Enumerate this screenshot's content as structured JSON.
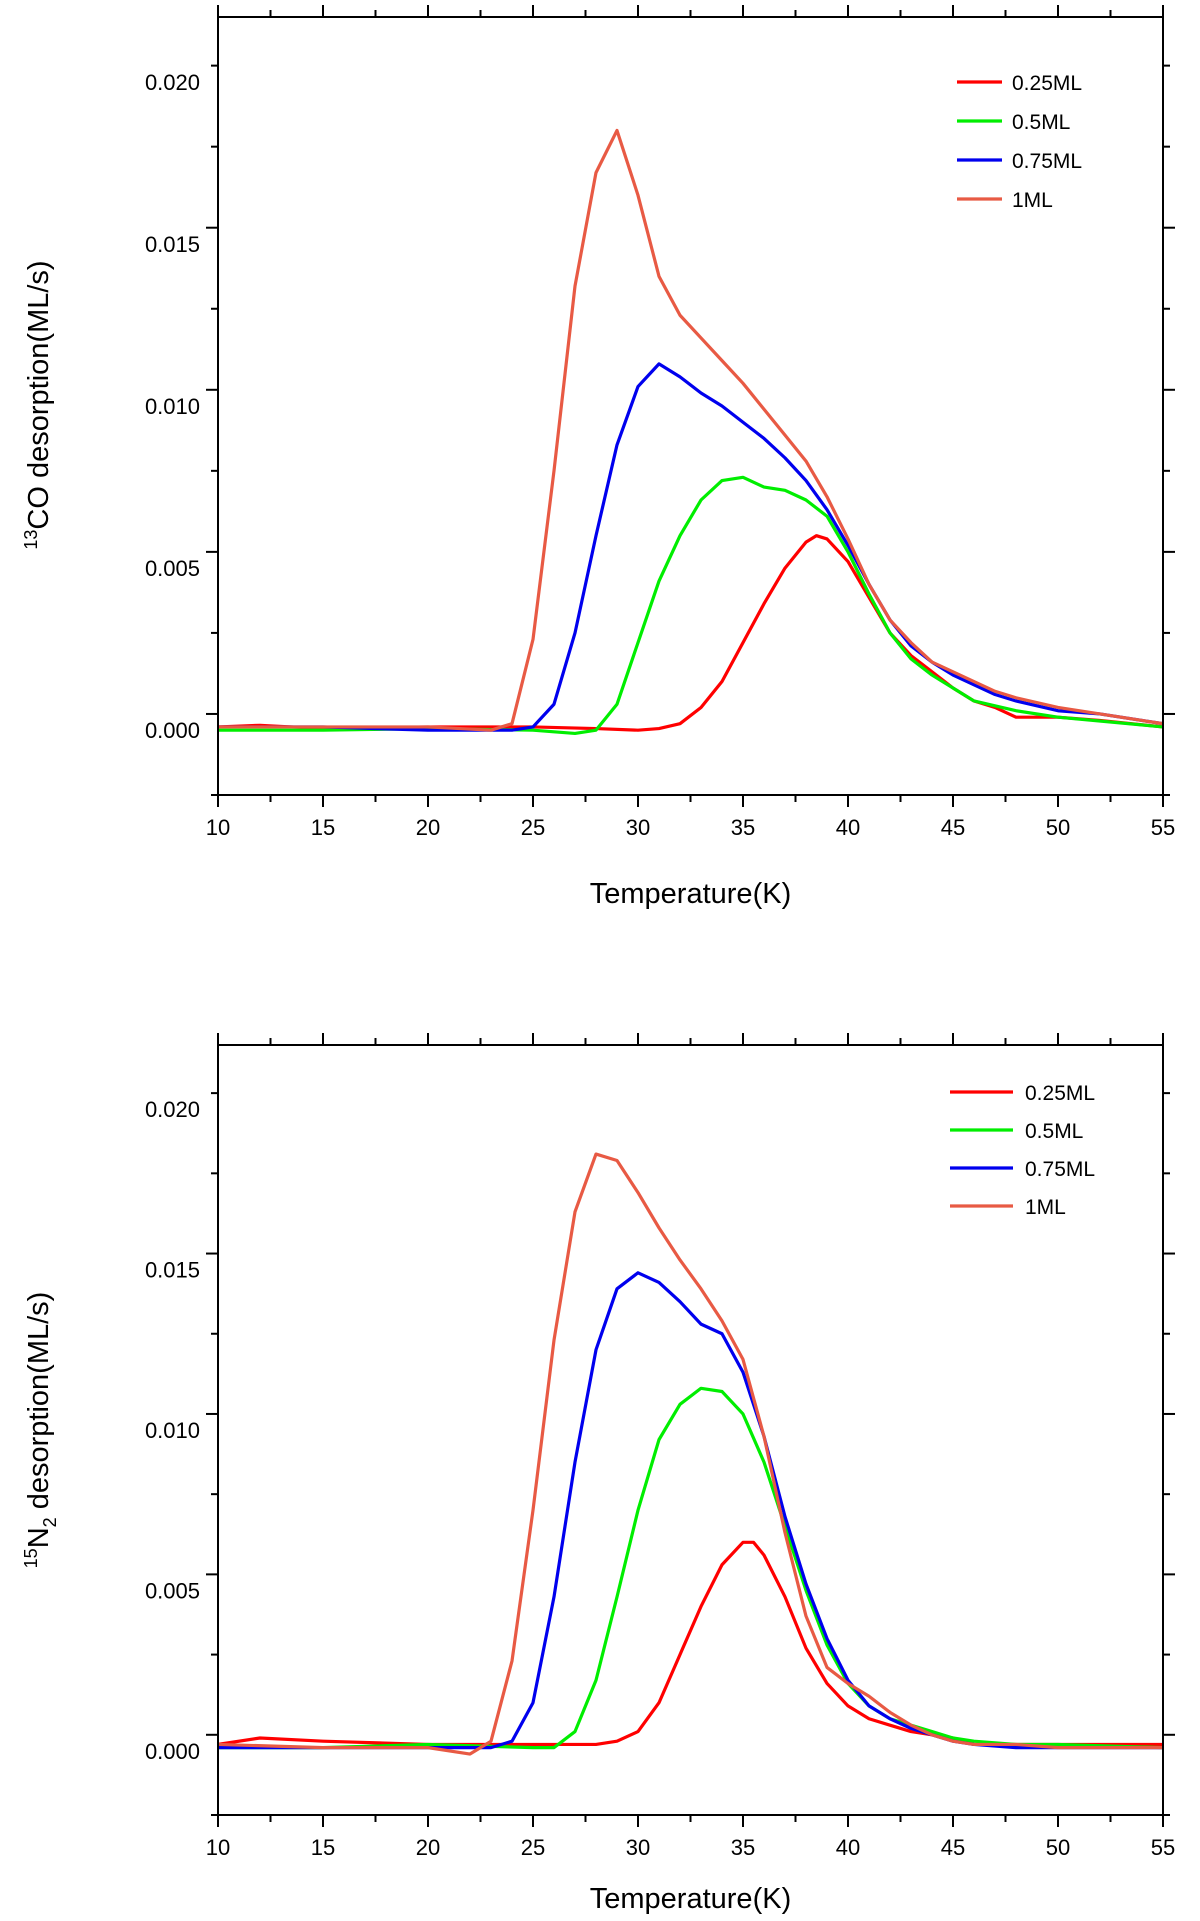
{
  "chart_data": [
    {
      "type": "line",
      "xlabel": "Temperature(K)",
      "ylabel": {
        "sup": "13",
        "main": "CO desorption(ML/s)"
      },
      "xlim": [
        10,
        55
      ],
      "ylim": [
        -0.002,
        0.022
      ],
      "x_ticks": [
        10,
        15,
        20,
        25,
        30,
        35,
        40,
        45,
        50,
        55
      ],
      "y_ticks": [
        0.0,
        0.005,
        0.01,
        0.015,
        0.02
      ],
      "x_tick_labels": [
        "10",
        "15",
        "20",
        "25",
        "30",
        "35",
        "40",
        "45",
        "50",
        "55"
      ],
      "y_tick_labels": [
        "0.000",
        "0.005",
        "0.010",
        "0.015",
        "0.020"
      ],
      "legend_position": "top-right",
      "series": [
        {
          "name": "0.25ML",
          "color": "#ff0000",
          "x": [
            10,
            12,
            15,
            20,
            25,
            28,
            30,
            31,
            32,
            33,
            34,
            35,
            36,
            37,
            38,
            38.5,
            39,
            40,
            41,
            42,
            43,
            44,
            45,
            46,
            47,
            48,
            50,
            52,
            55
          ],
          "y": [
            0.0001,
            0.00015,
            5e-05,
            0.0001,
            0.0001,
            5e-05,
            0.0,
            5e-05,
            0.0002,
            0.0007,
            0.0015,
            0.0027,
            0.0039,
            0.005,
            0.0058,
            0.006,
            0.0059,
            0.0052,
            0.0041,
            0.003,
            0.0023,
            0.0018,
            0.0013,
            0.0009,
            0.0007,
            0.0004,
            0.0004,
            0.0003,
            0.0001
          ]
        },
        {
          "name": "0.5ML",
          "color": "#00ee00",
          "x": [
            10,
            15,
            20,
            25,
            27,
            28,
            29,
            30,
            31,
            32,
            33,
            34,
            35,
            36,
            37,
            38,
            39,
            40,
            41,
            42,
            43,
            44,
            45,
            46,
            48,
            50,
            55
          ],
          "y": [
            0.0,
            0.0,
            5e-05,
            0.0,
            -0.0001,
            0.0,
            0.0008,
            0.0027,
            0.0046,
            0.006,
            0.0071,
            0.0077,
            0.0078,
            0.0075,
            0.0074,
            0.0071,
            0.0066,
            0.0055,
            0.0042,
            0.003,
            0.0022,
            0.0017,
            0.0013,
            0.0009,
            0.0006,
            0.0004,
            0.0001
          ]
        },
        {
          "name": "0.75ML",
          "color": "#0000ee",
          "x": [
            10,
            15,
            20,
            24,
            25,
            26,
            27,
            28,
            29,
            30,
            31,
            32,
            33,
            34,
            35,
            36,
            37,
            38,
            39,
            40,
            41,
            42,
            43,
            44,
            45,
            46,
            47,
            48,
            50,
            52,
            55
          ],
          "y": [
            0.0001,
            0.0001,
            0.0,
            0.0,
            0.0001,
            0.0008,
            0.003,
            0.006,
            0.0088,
            0.0106,
            0.0113,
            0.0109,
            0.0104,
            0.01,
            0.0095,
            0.009,
            0.0084,
            0.0077,
            0.0068,
            0.0057,
            0.0045,
            0.0034,
            0.0026,
            0.0021,
            0.0017,
            0.0014,
            0.0011,
            0.0009,
            0.0006,
            0.0005,
            0.0002
          ]
        },
        {
          "name": "1ML",
          "color": "#e85a44",
          "x": [
            10,
            15,
            20,
            23,
            24,
            25,
            26,
            27,
            28,
            29,
            30,
            31,
            32,
            33,
            34,
            35,
            36,
            37,
            38,
            39,
            40,
            41,
            42,
            43,
            44,
            45,
            46,
            47,
            48,
            50,
            52,
            55
          ],
          "y": [
            0.0001,
            0.0001,
            0.0001,
            0.0,
            0.0002,
            0.0028,
            0.008,
            0.0137,
            0.0172,
            0.0185,
            0.0165,
            0.014,
            0.0128,
            0.0121,
            0.0114,
            0.0107,
            0.0099,
            0.0091,
            0.0083,
            0.0072,
            0.0059,
            0.0045,
            0.0034,
            0.0027,
            0.0021,
            0.0018,
            0.0015,
            0.0012,
            0.001,
            0.0007,
            0.0005,
            0.0002
          ]
        }
      ]
    },
    {
      "type": "line",
      "xlabel": "Temperature(K)",
      "ylabel": {
        "sup": "15",
        "main": "N",
        "sub": "2",
        "rest": " desorption(ML/s)"
      },
      "xlim": [
        10,
        55
      ],
      "ylim": [
        -0.002,
        0.022
      ],
      "x_ticks": [
        10,
        15,
        20,
        25,
        30,
        35,
        40,
        45,
        50,
        55
      ],
      "y_ticks": [
        0.0,
        0.005,
        0.01,
        0.015,
        0.02
      ],
      "x_tick_labels": [
        "10",
        "15",
        "20",
        "25",
        "30",
        "35",
        "40",
        "45",
        "50",
        "55"
      ],
      "y_tick_labels": [
        "0.000",
        "0.005",
        "0.010",
        "0.015",
        "0.020"
      ],
      "legend_position": "top-right",
      "series": [
        {
          "name": "0.25ML",
          "color": "#ff0000",
          "x": [
            10,
            12,
            15,
            20,
            25,
            28,
            29,
            30,
            31,
            32,
            33,
            34,
            35,
            35.5,
            36,
            37,
            38,
            39,
            40,
            41,
            42,
            43,
            44,
            45,
            46,
            47,
            50,
            55
          ],
          "y": [
            0.0002,
            0.0004,
            0.0003,
            0.0002,
            0.0002,
            0.0002,
            0.0003,
            0.0006,
            0.0015,
            0.003,
            0.0045,
            0.0058,
            0.0065,
            0.0065,
            0.0061,
            0.0048,
            0.0032,
            0.0021,
            0.0014,
            0.001,
            0.0008,
            0.0006,
            0.0005,
            0.0004,
            0.0002,
            0.0002,
            0.0002,
            0.0002
          ]
        },
        {
          "name": "0.5ML",
          "color": "#00ee00",
          "x": [
            10,
            15,
            20,
            25,
            26,
            27,
            28,
            29,
            30,
            31,
            32,
            33,
            34,
            35,
            36,
            37,
            38,
            39,
            40,
            41,
            42,
            43,
            44,
            45,
            46,
            48,
            50,
            55
          ],
          "y": [
            0.0001,
            0.0001,
            0.0002,
            0.0001,
            0.0001,
            0.0006,
            0.0022,
            0.0048,
            0.0075,
            0.0097,
            0.0108,
            0.0113,
            0.0112,
            0.0105,
            0.009,
            0.007,
            0.005,
            0.0033,
            0.0021,
            0.0014,
            0.001,
            0.0008,
            0.0006,
            0.0004,
            0.0003,
            0.0002,
            0.0002,
            0.0001
          ]
        },
        {
          "name": "0.75ML",
          "color": "#0000ee",
          "x": [
            10,
            15,
            20,
            23,
            24,
            25,
            26,
            27,
            28,
            29,
            30,
            31,
            32,
            33,
            34,
            35,
            36,
            37,
            38,
            39,
            40,
            41,
            42,
            43,
            44,
            45,
            46,
            48,
            50,
            55
          ],
          "y": [
            0.0001,
            0.0001,
            0.0001,
            0.0001,
            0.0003,
            0.0015,
            0.0048,
            0.009,
            0.0125,
            0.0144,
            0.0149,
            0.0146,
            0.014,
            0.0133,
            0.013,
            0.0118,
            0.0098,
            0.0073,
            0.0052,
            0.0035,
            0.0022,
            0.0014,
            0.001,
            0.0007,
            0.0005,
            0.0003,
            0.0002,
            0.0001,
            0.0001,
            0.0001
          ]
        },
        {
          "name": "1ML",
          "color": "#e85a44",
          "x": [
            10,
            15,
            20,
            22,
            23,
            24,
            25,
            26,
            27,
            28,
            29,
            30,
            31,
            32,
            33,
            34,
            35,
            36,
            37,
            38,
            39,
            40,
            41,
            42,
            43,
            44,
            45,
            46,
            48,
            50,
            55
          ],
          "y": [
            0.0002,
            0.0001,
            0.0001,
            -0.0001,
            0.0003,
            0.0028,
            0.0075,
            0.0128,
            0.0168,
            0.0186,
            0.0184,
            0.0174,
            0.0163,
            0.0153,
            0.0144,
            0.0134,
            0.0122,
            0.0098,
            0.0068,
            0.0042,
            0.0026,
            0.0021,
            0.0017,
            0.0012,
            0.0008,
            0.0005,
            0.0003,
            0.0002,
            0.0002,
            0.0001,
            0.0001
          ]
        }
      ]
    }
  ]
}
